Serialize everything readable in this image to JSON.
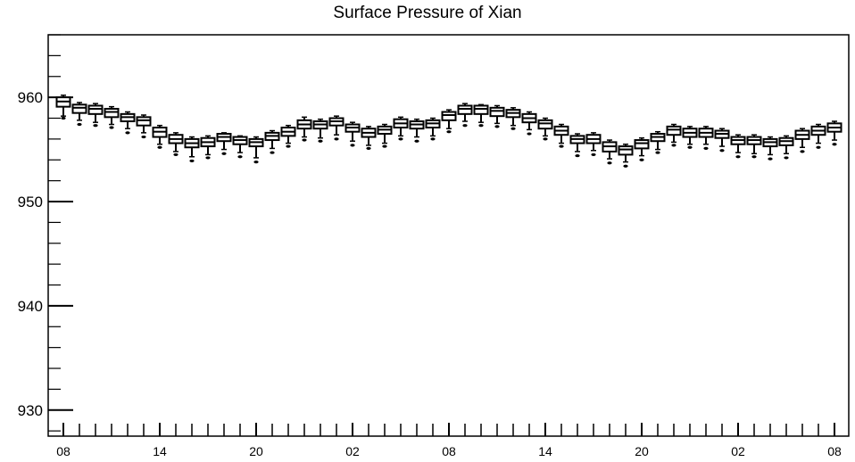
{
  "chart_data": {
    "type": "box",
    "title": "Surface Pressure of Xian",
    "xlabel": "",
    "ylabel": "",
    "ylim": [
      927.5,
      966
    ],
    "y_ticks": [
      930,
      940,
      950,
      960
    ],
    "x_tick_labels": [
      "08",
      "14",
      "20",
      "02",
      "08",
      "14",
      "20",
      "02",
      "08"
    ],
    "grid": false,
    "series": [
      {
        "boxes": [
          {
            "x": 0,
            "q1": 959.1,
            "median": 959.6,
            "q3": 960.0,
            "low": 958.2,
            "high": 960.2,
            "outliers": [
              958.0
            ]
          },
          {
            "x": 1,
            "q1": 958.5,
            "median": 959.0,
            "q3": 959.3,
            "low": 957.8,
            "high": 959.5,
            "outliers": [
              957.4
            ]
          },
          {
            "x": 2,
            "q1": 958.4,
            "median": 958.9,
            "q3": 959.2,
            "low": 957.6,
            "high": 959.4,
            "outliers": [
              957.3
            ]
          },
          {
            "x": 3,
            "q1": 958.1,
            "median": 958.6,
            "q3": 958.9,
            "low": 957.4,
            "high": 959.1,
            "outliers": [
              957.1
            ]
          },
          {
            "x": 4,
            "q1": 957.7,
            "median": 958.1,
            "q3": 958.4,
            "low": 957.0,
            "high": 958.6,
            "outliers": [
              956.6
            ]
          },
          {
            "x": 5,
            "q1": 957.3,
            "median": 957.8,
            "q3": 958.1,
            "low": 956.6,
            "high": 958.3,
            "outliers": [
              956.2
            ]
          },
          {
            "x": 6,
            "q1": 956.2,
            "median": 956.7,
            "q3": 957.1,
            "low": 955.5,
            "high": 957.3,
            "outliers": [
              955.2
            ]
          },
          {
            "x": 7,
            "q1": 955.6,
            "median": 956.0,
            "q3": 956.4,
            "low": 954.8,
            "high": 956.6,
            "outliers": [
              954.5
            ]
          },
          {
            "x": 8,
            "q1": 955.2,
            "median": 955.6,
            "q3": 956.0,
            "low": 954.3,
            "high": 956.2,
            "outliers": [
              953.9
            ]
          },
          {
            "x": 9,
            "q1": 955.3,
            "median": 955.7,
            "q3": 956.1,
            "low": 954.5,
            "high": 956.3,
            "outliers": [
              954.2
            ]
          },
          {
            "x": 10,
            "q1": 955.8,
            "median": 956.2,
            "q3": 956.5,
            "low": 955.0,
            "high": 956.6,
            "outliers": [
              954.6
            ]
          },
          {
            "x": 11,
            "q1": 955.5,
            "median": 955.9,
            "q3": 956.2,
            "low": 954.7,
            "high": 956.3,
            "outliers": [
              954.3
            ]
          },
          {
            "x": 12,
            "q1": 955.3,
            "median": 955.7,
            "q3": 956.0,
            "low": 954.2,
            "high": 956.2,
            "outliers": [
              953.8
            ]
          },
          {
            "x": 13,
            "q1": 955.9,
            "median": 956.3,
            "q3": 956.6,
            "low": 955.1,
            "high": 956.8,
            "outliers": [
              954.7
            ]
          },
          {
            "x": 14,
            "q1": 956.3,
            "median": 956.7,
            "q3": 957.1,
            "low": 955.6,
            "high": 957.3,
            "outliers": [
              955.3
            ]
          },
          {
            "x": 15,
            "q1": 957.0,
            "median": 957.4,
            "q3": 957.8,
            "low": 956.2,
            "high": 958.1,
            "outliers": [
              955.9
            ]
          },
          {
            "x": 16,
            "q1": 957.0,
            "median": 957.4,
            "q3": 957.7,
            "low": 956.1,
            "high": 957.9,
            "outliers": [
              955.8
            ]
          },
          {
            "x": 17,
            "q1": 957.3,
            "median": 957.7,
            "q3": 958.0,
            "low": 956.4,
            "high": 958.2,
            "outliers": [
              956.0
            ]
          },
          {
            "x": 18,
            "q1": 956.7,
            "median": 957.1,
            "q3": 957.4,
            "low": 955.8,
            "high": 957.6,
            "outliers": [
              955.4
            ]
          },
          {
            "x": 19,
            "q1": 956.2,
            "median": 956.6,
            "q3": 957.0,
            "low": 955.4,
            "high": 957.2,
            "outliers": [
              955.1
            ]
          },
          {
            "x": 20,
            "q1": 956.5,
            "median": 956.9,
            "q3": 957.2,
            "low": 955.6,
            "high": 957.4,
            "outliers": [
              955.3
            ]
          },
          {
            "x": 21,
            "q1": 957.1,
            "median": 957.5,
            "q3": 957.9,
            "low": 956.3,
            "high": 958.1,
            "outliers": [
              956.0
            ]
          },
          {
            "x": 22,
            "q1": 957.0,
            "median": 957.4,
            "q3": 957.7,
            "low": 956.2,
            "high": 957.9,
            "outliers": [
              955.8
            ]
          },
          {
            "x": 23,
            "q1": 957.1,
            "median": 957.5,
            "q3": 957.8,
            "low": 956.3,
            "high": 958.0,
            "outliers": [
              956.0
            ]
          },
          {
            "x": 24,
            "q1": 957.8,
            "median": 958.3,
            "q3": 958.6,
            "low": 957.0,
            "high": 958.8,
            "outliers": [
              956.7
            ]
          },
          {
            "x": 25,
            "q1": 958.4,
            "median": 958.9,
            "q3": 959.2,
            "low": 957.7,
            "high": 959.4,
            "outliers": [
              957.3
            ]
          },
          {
            "x": 26,
            "q1": 958.4,
            "median": 958.9,
            "q3": 959.2,
            "low": 957.6,
            "high": 959.3,
            "outliers": [
              957.3
            ]
          },
          {
            "x": 27,
            "q1": 958.2,
            "median": 958.7,
            "q3": 959.0,
            "low": 957.5,
            "high": 959.2,
            "outliers": [
              957.2
            ]
          },
          {
            "x": 28,
            "q1": 958.1,
            "median": 958.5,
            "q3": 958.8,
            "low": 957.3,
            "high": 959.0,
            "outliers": [
              957.0
            ]
          },
          {
            "x": 29,
            "q1": 957.6,
            "median": 958.0,
            "q3": 958.4,
            "low": 956.9,
            "high": 958.6,
            "outliers": [
              956.5
            ]
          },
          {
            "x": 30,
            "q1": 957.0,
            "median": 957.5,
            "q3": 957.8,
            "low": 956.3,
            "high": 958.0,
            "outliers": [
              956.0
            ]
          },
          {
            "x": 31,
            "q1": 956.4,
            "median": 956.8,
            "q3": 957.2,
            "low": 955.6,
            "high": 957.4,
            "outliers": [
              955.3
            ]
          },
          {
            "x": 32,
            "q1": 955.6,
            "median": 956.0,
            "q3": 956.3,
            "low": 954.8,
            "high": 956.5,
            "outliers": [
              954.4
            ]
          },
          {
            "x": 33,
            "q1": 955.6,
            "median": 956.0,
            "q3": 956.4,
            "low": 954.9,
            "high": 956.6,
            "outliers": [
              954.5
            ]
          },
          {
            "x": 34,
            "q1": 954.8,
            "median": 955.3,
            "q3": 955.7,
            "low": 954.1,
            "high": 955.9,
            "outliers": [
              953.7
            ]
          },
          {
            "x": 35,
            "q1": 954.5,
            "median": 955.0,
            "q3": 955.3,
            "low": 953.8,
            "high": 955.5,
            "outliers": [
              953.4
            ]
          },
          {
            "x": 36,
            "q1": 955.1,
            "median": 955.6,
            "q3": 955.9,
            "low": 954.4,
            "high": 956.1,
            "outliers": [
              954.0
            ]
          },
          {
            "x": 37,
            "q1": 955.8,
            "median": 956.2,
            "q3": 956.5,
            "low": 955.0,
            "high": 956.7,
            "outliers": [
              954.7
            ]
          },
          {
            "x": 38,
            "q1": 956.4,
            "median": 956.9,
            "q3": 957.2,
            "low": 955.7,
            "high": 957.4,
            "outliers": [
              955.4
            ]
          },
          {
            "x": 39,
            "q1": 956.2,
            "median": 956.6,
            "q3": 957.0,
            "low": 955.5,
            "high": 957.2,
            "outliers": [
              955.2
            ]
          },
          {
            "x": 40,
            "q1": 956.2,
            "median": 956.6,
            "q3": 957.0,
            "low": 955.5,
            "high": 957.2,
            "outliers": [
              955.1
            ]
          },
          {
            "x": 41,
            "q1": 956.1,
            "median": 956.5,
            "q3": 956.8,
            "low": 955.3,
            "high": 957.0,
            "outliers": [
              954.9
            ]
          },
          {
            "x": 42,
            "q1": 955.5,
            "median": 955.9,
            "q3": 956.2,
            "low": 954.7,
            "high": 956.4,
            "outliers": [
              954.3
            ]
          },
          {
            "x": 43,
            "q1": 955.5,
            "median": 955.9,
            "q3": 956.2,
            "low": 954.6,
            "high": 956.4,
            "outliers": [
              954.3
            ]
          },
          {
            "x": 44,
            "q1": 955.3,
            "median": 955.7,
            "q3": 956.0,
            "low": 954.5,
            "high": 956.2,
            "outliers": [
              954.1
            ]
          },
          {
            "x": 45,
            "q1": 955.4,
            "median": 955.8,
            "q3": 956.1,
            "low": 954.6,
            "high": 956.3,
            "outliers": [
              954.2
            ]
          },
          {
            "x": 46,
            "q1": 956.0,
            "median": 956.4,
            "q3": 956.8,
            "low": 955.2,
            "high": 957.0,
            "outliers": [
              954.8
            ]
          },
          {
            "x": 47,
            "q1": 956.4,
            "median": 956.8,
            "q3": 957.2,
            "low": 955.6,
            "high": 957.4,
            "outliers": [
              955.2
            ]
          },
          {
            "x": 48,
            "q1": 956.7,
            "median": 957.1,
            "q3": 957.5,
            "low": 955.9,
            "high": 957.7,
            "outliers": [
              955.5
            ]
          }
        ]
      }
    ]
  }
}
